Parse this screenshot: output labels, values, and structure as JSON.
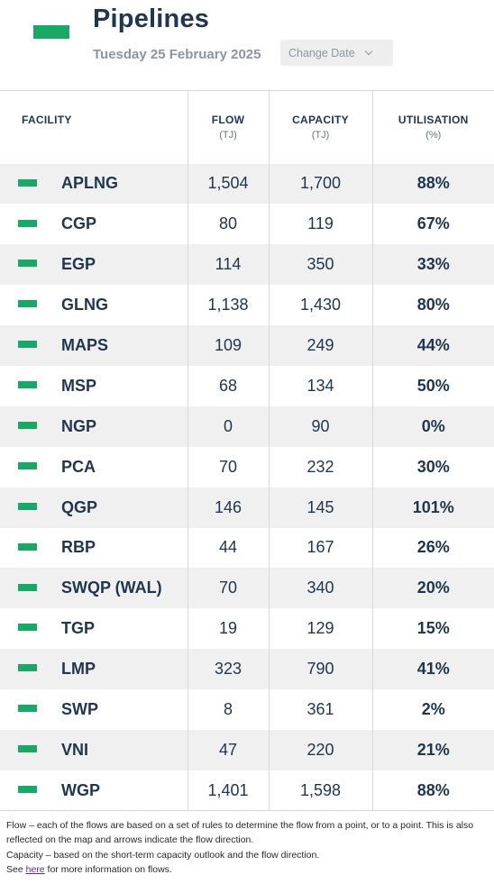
{
  "header": {
    "title": "Pipelines",
    "date": "Tuesday 25 February 2025",
    "change_date_label": "Change Date"
  },
  "table": {
    "columns": {
      "facility": "FACILITY",
      "flow": "FLOW",
      "flow_unit": "(TJ)",
      "capacity": "CAPACITY",
      "capacity_unit": "(TJ)",
      "utilisation": "UTILISATION",
      "utilisation_unit": "(%)"
    },
    "rows": [
      {
        "facility": "APLNG",
        "flow": "1,504",
        "capacity": "1,700",
        "utilisation": "88%"
      },
      {
        "facility": "CGP",
        "flow": "80",
        "capacity": "119",
        "utilisation": "67%"
      },
      {
        "facility": "EGP",
        "flow": "114",
        "capacity": "350",
        "utilisation": "33%"
      },
      {
        "facility": "GLNG",
        "flow": "1,138",
        "capacity": "1,430",
        "utilisation": "80%"
      },
      {
        "facility": "MAPS",
        "flow": "109",
        "capacity": "249",
        "utilisation": "44%"
      },
      {
        "facility": "MSP",
        "flow": "68",
        "capacity": "134",
        "utilisation": "50%"
      },
      {
        "facility": "NGP",
        "flow": "0",
        "capacity": "90",
        "utilisation": "0%"
      },
      {
        "facility": "PCA",
        "flow": "70",
        "capacity": "232",
        "utilisation": "30%"
      },
      {
        "facility": "QGP",
        "flow": "146",
        "capacity": "145",
        "utilisation": "101%"
      },
      {
        "facility": "RBP",
        "flow": "44",
        "capacity": "167",
        "utilisation": "26%"
      },
      {
        "facility": "SWQP (WAL)",
        "flow": "70",
        "capacity": "340",
        "utilisation": "20%"
      },
      {
        "facility": "TGP",
        "flow": "19",
        "capacity": "129",
        "utilisation": "15%"
      },
      {
        "facility": "LMP",
        "flow": "323",
        "capacity": "790",
        "utilisation": "41%"
      },
      {
        "facility": "SWP",
        "flow": "8",
        "capacity": "361",
        "utilisation": "2%"
      },
      {
        "facility": "VNI",
        "flow": "47",
        "capacity": "220",
        "utilisation": "21%"
      },
      {
        "facility": "WGP",
        "flow": "1,401",
        "capacity": "1,598",
        "utilisation": "88%"
      }
    ]
  },
  "notes": {
    "flow_note": "Flow – each of the flows are based on a set of rules to determine the flow from a point, or to a point. This is also reflected on the map and arrows indicate the flow direction.",
    "capacity_note": "Capacity – based on the short-term capacity outlook and the flow direction.",
    "see_prefix": "See",
    "link_text": "here",
    "see_suffix": "for more information on flows."
  },
  "colors": {
    "accent_green": "#1aa866",
    "title_navy": "#1f3550"
  },
  "icons": {
    "header": "pipeline-legend-icon",
    "row": "facility-legend-icon",
    "dropdown": "chevron-down-icon"
  }
}
